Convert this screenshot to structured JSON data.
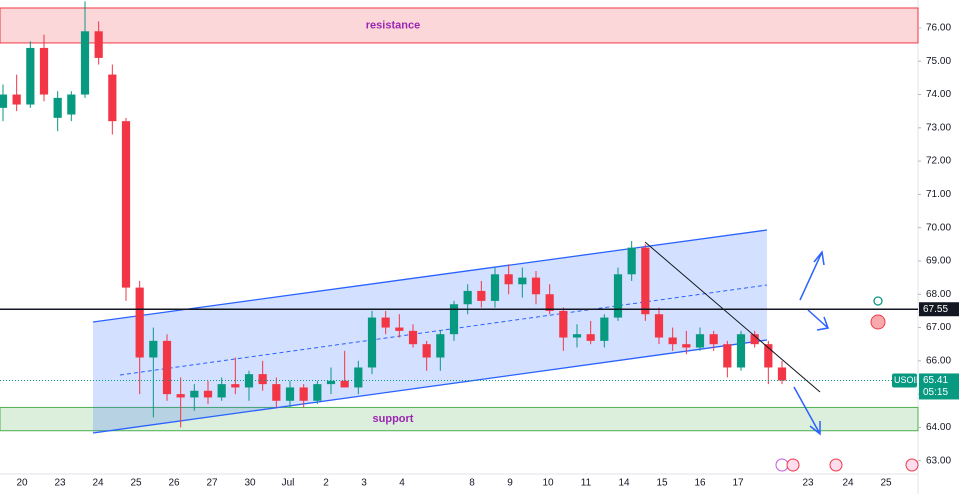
{
  "chart_data": {
    "type": "candlestick",
    "symbol": "USOIL",
    "categories": [
      "20",
      "23",
      "24",
      "25",
      "26",
      "27",
      "30",
      "Jul",
      "2",
      "3",
      "4",
      "8",
      "9",
      "10",
      "11",
      "14",
      "15",
      "16",
      "17",
      "23",
      "24",
      "25"
    ],
    "open": [
      73.6,
      74.0,
      73.7,
      75.4,
      73.3,
      73.4,
      74.0,
      75.9,
      74.6,
      73.2,
      68.2,
      66.1,
      66.6,
      65.0,
      64.9,
      65.1,
      64.9,
      65.3,
      65.2,
      65.6,
      65.3,
      64.8,
      65.2,
      64.8,
      65.3,
      65.4,
      65.2,
      65.8,
      67.3,
      67.0,
      66.9,
      66.5,
      66.1,
      66.8,
      67.7,
      68.1,
      67.8,
      68.6,
      68.3,
      68.5,
      68.0,
      67.5,
      66.7,
      66.8,
      66.6,
      67.3,
      68.6,
      69.4,
      67.4,
      66.7,
      66.5,
      66.4,
      66.8,
      66.5,
      65.8,
      66.8,
      66.5,
      65.8
    ],
    "high": [
      74.3,
      74.6,
      75.6,
      75.8,
      74.1,
      74.1,
      76.8,
      76.2,
      74.9,
      73.3,
      68.4,
      67.0,
      66.8,
      65.5,
      65.3,
      65.4,
      65.5,
      66.1,
      65.7,
      66.0,
      65.5,
      65.4,
      65.3,
      65.4,
      65.8,
      66.3,
      66.0,
      67.5,
      67.5,
      67.4,
      67.1,
      66.6,
      66.9,
      67.8,
      68.3,
      68.4,
      68.8,
      68.9,
      68.8,
      68.7,
      68.3,
      67.6,
      67.1,
      67.2,
      67.4,
      68.8,
      69.6,
      69.5,
      67.6,
      67.0,
      66.9,
      67.0,
      66.9,
      66.6,
      66.9,
      66.9,
      66.6,
      66.0
    ],
    "low": [
      73.2,
      73.5,
      73.6,
      73.8,
      72.9,
      73.2,
      73.9,
      74.9,
      72.8,
      67.8,
      65.0,
      64.3,
      64.8,
      64.0,
      64.5,
      64.7,
      64.8,
      65.0,
      64.8,
      65.1,
      64.6,
      64.6,
      64.6,
      64.7,
      65.0,
      65.2,
      65.0,
      65.6,
      66.8,
      66.7,
      66.4,
      65.7,
      65.7,
      66.6,
      67.4,
      67.6,
      67.6,
      68.0,
      67.9,
      67.7,
      67.4,
      66.3,
      66.4,
      66.5,
      66.4,
      67.2,
      68.4,
      67.2,
      66.5,
      66.3,
      66.2,
      66.3,
      66.3,
      65.5,
      65.7,
      66.4,
      65.3,
      65.3
    ],
    "close": [
      74.0,
      73.7,
      75.4,
      74.0,
      73.9,
      74.0,
      75.9,
      75.1,
      73.2,
      68.2,
      66.1,
      66.6,
      65.0,
      64.9,
      65.1,
      64.9,
      65.3,
      65.2,
      65.6,
      65.3,
      64.8,
      65.2,
      64.8,
      65.3,
      65.4,
      65.2,
      65.8,
      67.3,
      67.0,
      66.9,
      66.5,
      66.1,
      66.8,
      67.7,
      68.1,
      67.8,
      68.6,
      68.3,
      68.5,
      68.0,
      67.5,
      66.7,
      66.8,
      66.6,
      67.3,
      68.6,
      69.4,
      67.4,
      66.7,
      66.5,
      66.4,
      66.8,
      66.5,
      65.8,
      66.8,
      66.5,
      65.8,
      65.41
    ],
    "up_color": "#089981",
    "down_color": "#f23645",
    "ylim": [
      62.6,
      76.84
    ],
    "yticks": [
      {
        "value": 63,
        "label": "63.00"
      },
      {
        "value": 64,
        "label": "64.00"
      },
      {
        "value": 65,
        "label": "65.00"
      },
      {
        "value": 66,
        "label": "66.00"
      },
      {
        "value": 67,
        "label": "67.00"
      },
      {
        "value": 68,
        "label": "68.00"
      },
      {
        "value": 69,
        "label": "69.00"
      },
      {
        "value": 70,
        "label": "70.00"
      },
      {
        "value": 71,
        "label": "71.00"
      },
      {
        "value": 72,
        "label": "72.00"
      },
      {
        "value": 73,
        "label": "73.00"
      },
      {
        "value": 74,
        "label": "74.00"
      },
      {
        "value": 75,
        "label": "75.00"
      },
      {
        "value": 76,
        "label": "76.00"
      }
    ],
    "level": 67.55,
    "last_price": 65.41,
    "countdown": "05:15",
    "zones": [
      {
        "label": "resistance",
        "from": 75.55,
        "to": 76.6,
        "color": "#f23645"
      },
      {
        "label": "support",
        "from": 63.9,
        "to": 64.6,
        "color": "#4caf50"
      }
    ]
  }
}
